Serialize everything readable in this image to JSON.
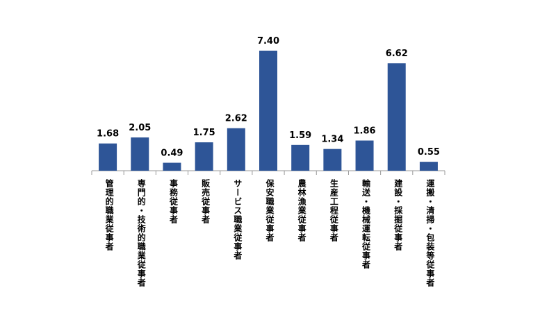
{
  "chart_data": {
    "type": "bar",
    "categories": [
      "管理的職業従事者",
      "専門的・技術的職業従事者",
      "事務従事者",
      "販売従事者",
      "サービス職業従事者",
      "保安職業従事者",
      "農林漁業従事者",
      "生産工程従事者",
      "輸送・機械運転従事者",
      "建設・採掘従事者",
      "運搬・清掃・包装等従事者"
    ],
    "values": [
      1.68,
      2.05,
      0.49,
      1.75,
      2.62,
      7.4,
      1.59,
      1.34,
      1.86,
      6.62,
      0.55
    ],
    "value_labels": [
      "1.68",
      "2.05",
      "0.49",
      "1.75",
      "2.62",
      "7.40",
      "1.59",
      "1.34",
      "1.86",
      "6.62",
      "0.55"
    ],
    "color": "#2e5597"
  }
}
